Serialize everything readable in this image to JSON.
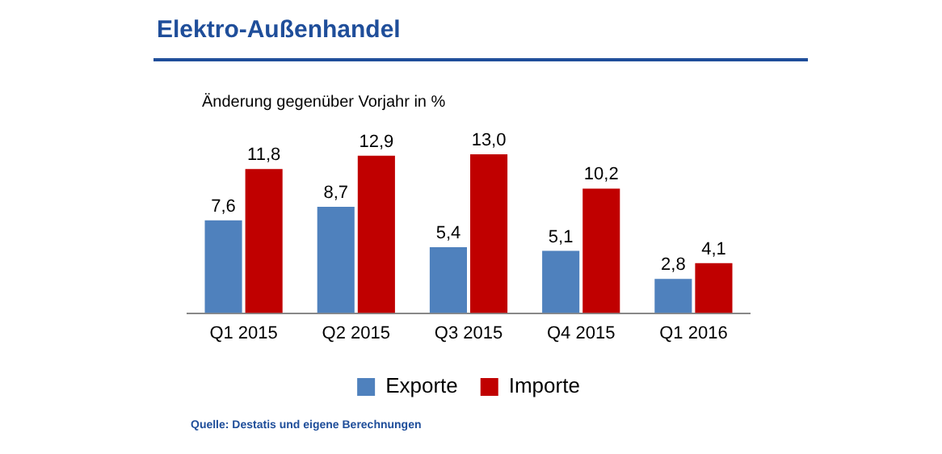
{
  "chart_data": {
    "type": "bar",
    "title": "Elektro-Außenhandel",
    "subtitle": "Änderung gegenüber Vorjahr in %",
    "categories": [
      "Q1 2015",
      "Q2 2015",
      "Q3 2015",
      "Q4 2015",
      "Q1 2016"
    ],
    "series": [
      {
        "name": "Exporte",
        "color": "#4f81bd",
        "values": [
          7.6,
          8.7,
          5.4,
          5.1,
          2.8
        ],
        "value_labels": [
          "7,6",
          "8,7",
          "5,4",
          "5,1",
          "2,8"
        ]
      },
      {
        "name": "Importe",
        "color": "#c00000",
        "values": [
          11.8,
          12.9,
          13.0,
          10.2,
          4.1
        ],
        "value_labels": [
          "11,8",
          "12,9",
          "13,0",
          "10,2",
          "4,1"
        ]
      }
    ],
    "legend": "bottom",
    "grid": false,
    "annotations": [
      "Quelle: Destatis und eigene Berechnungen"
    ]
  }
}
